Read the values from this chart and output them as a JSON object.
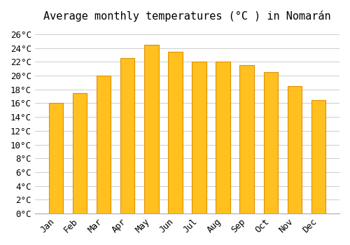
{
  "title": "Average monthly temperatures (°C ) in Nomarán",
  "months": [
    "Jan",
    "Feb",
    "Mar",
    "Apr",
    "May",
    "Jun",
    "Jul",
    "Aug",
    "Sep",
    "Oct",
    "Nov",
    "Dec"
  ],
  "values": [
    16.0,
    17.5,
    20.0,
    22.5,
    24.5,
    23.5,
    22.0,
    22.0,
    21.5,
    20.5,
    18.5,
    16.5
  ],
  "bar_color": "#FFC020",
  "bar_edge_color": "#E09000",
  "background_color": "#FFFFFF",
  "grid_color": "#CCCCCC",
  "ytick_labels": [
    "0°C",
    "2°C",
    "4°C",
    "6°C",
    "8°C",
    "10°C",
    "12°C",
    "14°C",
    "16°C",
    "18°C",
    "20°C",
    "22°C",
    "24°C",
    "26°C"
  ],
  "ytick_values": [
    0,
    2,
    4,
    6,
    8,
    10,
    12,
    14,
    16,
    18,
    20,
    22,
    24,
    26
  ],
  "ylim": [
    0,
    27
  ],
  "title_fontsize": 11,
  "tick_fontsize": 9,
  "font_family": "monospace"
}
